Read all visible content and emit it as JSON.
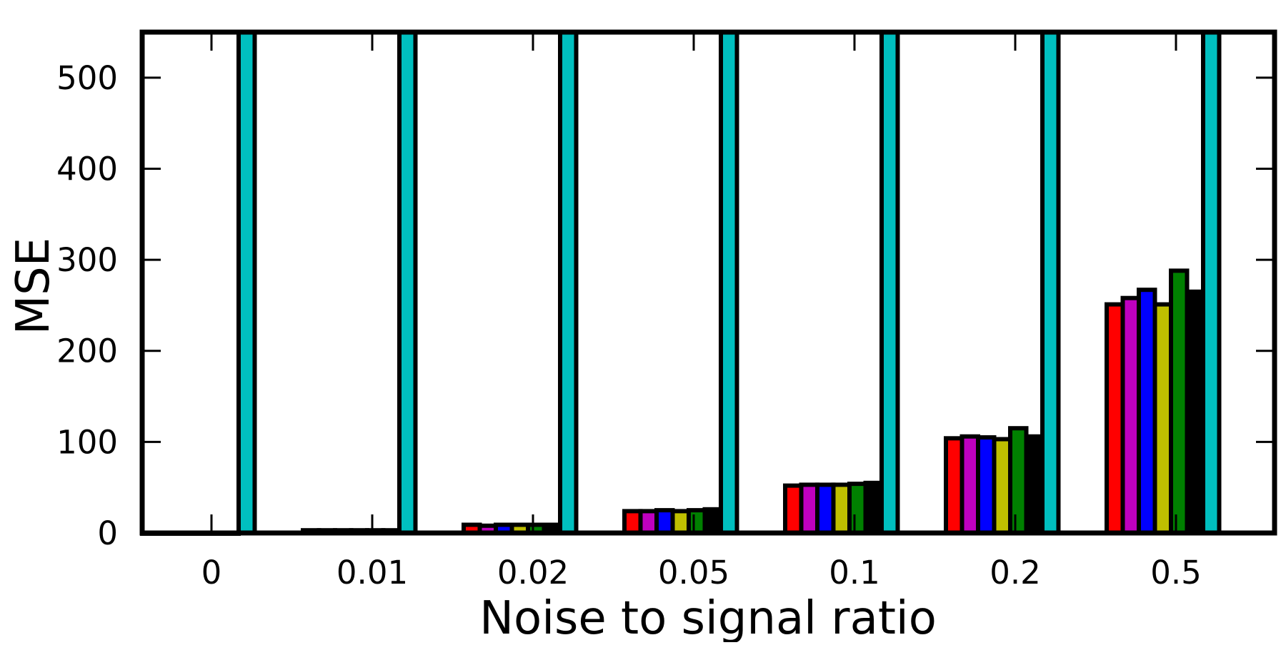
{
  "chart_data": {
    "type": "bar",
    "title": "",
    "xlabel": "Noise to signal ratio",
    "ylabel": "MSE",
    "categories": [
      "0",
      "0.01",
      "0.02",
      "0.05",
      "0.1",
      "0.2",
      "0.5"
    ],
    "ylim": [
      0,
      550
    ],
    "yticks": [
      "0",
      "100",
      "200",
      "300",
      "400",
      "500"
    ],
    "grid": false,
    "legend": "none",
    "series": [
      {
        "color": "#ff0000",
        "values": [
          0,
          3,
          9,
          24,
          52,
          104,
          251
        ]
      },
      {
        "color": "#bf00bf",
        "values": [
          0,
          3,
          8,
          24,
          53,
          106,
          258
        ]
      },
      {
        "color": "#0000ff",
        "values": [
          0,
          3,
          9,
          25,
          53,
          105,
          267
        ]
      },
      {
        "color": "#bfbf00",
        "values": [
          0,
          3,
          9,
          24,
          53,
          103,
          251
        ]
      },
      {
        "color": "#008000",
        "values": [
          0,
          3,
          9,
          25,
          54,
          115,
          288
        ]
      },
      {
        "color": "#000000",
        "values": [
          0,
          3,
          9,
          26,
          55,
          106,
          265
        ]
      },
      {
        "color": "#00bfbf",
        "values": [
          550,
          550,
          550,
          550,
          550,
          550,
          550
        ]
      }
    ]
  }
}
